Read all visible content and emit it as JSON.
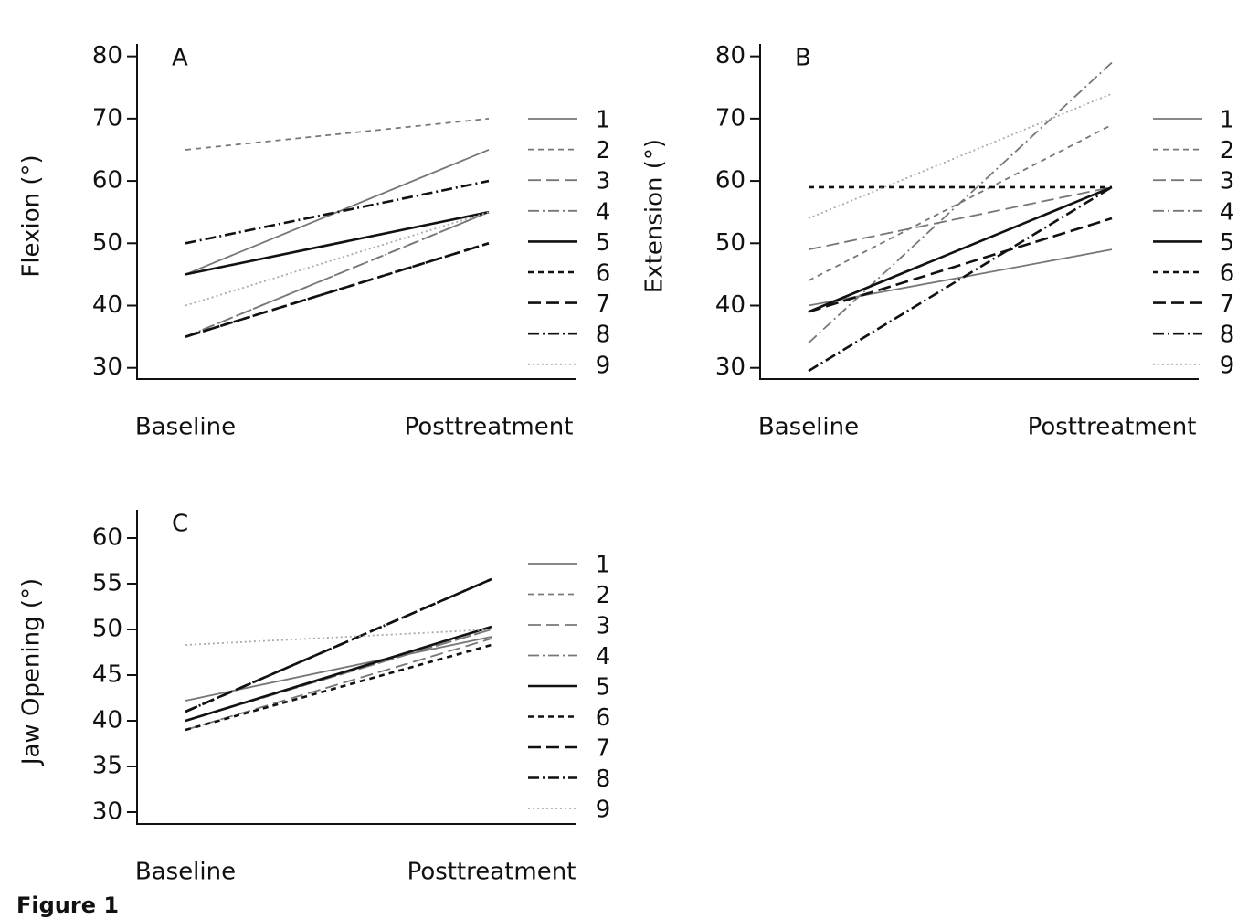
{
  "chart_data": [
    {
      "type": "line",
      "panel_label": "A",
      "y_label": "Flexion (°)",
      "categories": [
        "Baseline",
        "Posttreatment"
      ],
      "ylim": [
        28.2,
        82
      ],
      "yticks": [
        30,
        40,
        50,
        60,
        70,
        80
      ],
      "series": [
        {
          "name": "1",
          "color": "#777777",
          "dash": "solid",
          "values": [
            45,
            65
          ]
        },
        {
          "name": "2",
          "color": "#777777",
          "dash": "short-dash",
          "values": [
            65,
            70
          ]
        },
        {
          "name": "3",
          "color": "#777777",
          "dash": "long-dash",
          "values": [
            35,
            55
          ]
        },
        {
          "name": "4",
          "color": "#777777",
          "dash": "dash-dot",
          "values": [
            35,
            55
          ]
        },
        {
          "name": "5",
          "color": "#111111",
          "dash": "solid",
          "values": [
            45,
            55
          ]
        },
        {
          "name": "6",
          "color": "#111111",
          "dash": "short-dash",
          "values": [
            35,
            50
          ]
        },
        {
          "name": "7",
          "color": "#111111",
          "dash": "long-dash",
          "values": [
            35,
            50
          ]
        },
        {
          "name": "8",
          "color": "#111111",
          "dash": "dash-dot",
          "values": [
            50,
            60
          ]
        },
        {
          "name": "9",
          "color": "#aaaaaa",
          "dash": "dotted",
          "values": [
            40,
            55
          ]
        }
      ]
    },
    {
      "type": "line",
      "panel_label": "B",
      "y_label": "Extension (°)",
      "categories": [
        "Baseline",
        "Posttreatment"
      ],
      "ylim": [
        28.2,
        82
      ],
      "yticks": [
        30,
        40,
        50,
        60,
        70,
        80
      ],
      "series": [
        {
          "name": "1",
          "color": "#777777",
          "dash": "solid",
          "values": [
            40,
            49
          ]
        },
        {
          "name": "2",
          "color": "#777777",
          "dash": "short-dash",
          "values": [
            44,
            69
          ]
        },
        {
          "name": "3",
          "color": "#777777",
          "dash": "long-dash",
          "values": [
            49,
            59
          ]
        },
        {
          "name": "4",
          "color": "#777777",
          "dash": "dash-dot",
          "values": [
            34,
            79
          ]
        },
        {
          "name": "5",
          "color": "#111111",
          "dash": "solid",
          "values": [
            39,
            59
          ]
        },
        {
          "name": "6",
          "color": "#111111",
          "dash": "short-dash",
          "values": [
            59,
            59
          ]
        },
        {
          "name": "7",
          "color": "#111111",
          "dash": "long-dash",
          "values": [
            39,
            54
          ]
        },
        {
          "name": "8",
          "color": "#111111",
          "dash": "dash-dot",
          "values": [
            29.5,
            59
          ]
        },
        {
          "name": "9",
          "color": "#aaaaaa",
          "dash": "dotted",
          "values": [
            54,
            74
          ]
        }
      ]
    },
    {
      "type": "line",
      "panel_label": "C",
      "y_label": "Jaw Opening (°)",
      "categories": [
        "Baseline",
        "Posttreatment"
      ],
      "ylim": [
        28.7,
        63.1
      ],
      "yticks": [
        30,
        35,
        40,
        45,
        50,
        55,
        60
      ],
      "series": [
        {
          "name": "1",
          "color": "#777777",
          "dash": "solid",
          "values": [
            42.2,
            49.2
          ]
        },
        {
          "name": "2",
          "color": "#777777",
          "dash": "short-dash",
          "values": [
            40,
            50
          ]
        },
        {
          "name": "3",
          "color": "#777777",
          "dash": "long-dash",
          "values": [
            39,
            49
          ]
        },
        {
          "name": "4",
          "color": "#777777",
          "dash": "dash-dot",
          "values": [
            40,
            50
          ]
        },
        {
          "name": "5",
          "color": "#111111",
          "dash": "solid",
          "values": [
            40,
            50.3
          ]
        },
        {
          "name": "6",
          "color": "#111111",
          "dash": "short-dash",
          "values": [
            39,
            48.3
          ]
        },
        {
          "name": "7",
          "color": "#111111",
          "dash": "long-dash",
          "values": [
            41,
            55.5
          ]
        },
        {
          "name": "8",
          "color": "#111111",
          "dash": "dash-dot",
          "values": [
            41,
            55.5
          ]
        },
        {
          "name": "9",
          "color": "#aaaaaa",
          "dash": "dotted",
          "values": [
            48.3,
            50
          ]
        }
      ]
    }
  ],
  "caption": "Figure 1"
}
